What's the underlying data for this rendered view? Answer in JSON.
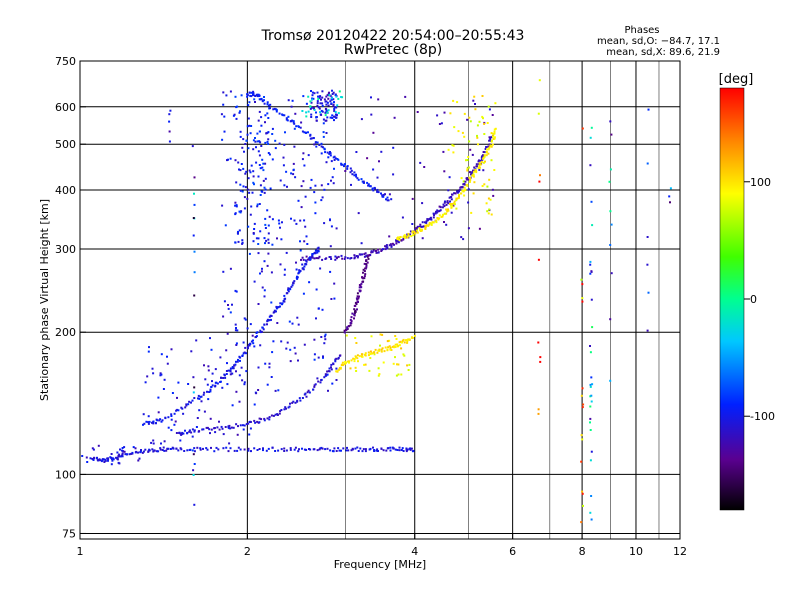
{
  "chart_data": {
    "type": "scatter",
    "title": "Tromsø 20120422 20:54:00–20:55:43",
    "subtitle": "RwPretec (8p)",
    "xlabel": "Frequency [MHz]",
    "ylabel": "Stationary phase Virtual Height [km]",
    "x_scale": "log",
    "y_scale": "log",
    "xlim": [
      1,
      12
    ],
    "ylim": [
      73,
      750
    ],
    "x_ticks": [
      1,
      2,
      4,
      6,
      8,
      10,
      12
    ],
    "y_ticks": [
      75,
      100,
      200,
      300,
      400,
      500,
      600,
      750
    ],
    "x_minor_grid": [
      3,
      5,
      7,
      9,
      11
    ],
    "grid": true,
    "phase_box": {
      "title": "Phases",
      "line1": "mean, sd,O: −84.7, 17.1",
      "line2": "mean, sd,X:  89.6, 21.9"
    },
    "colorbar": {
      "label": "[deg]",
      "range": [
        -180,
        180
      ],
      "ticks": [
        100,
        0,
        -100
      ],
      "palette": "rainbow (black-purple-blue-cyan-green-yellow-red)"
    },
    "traces": [
      {
        "name": "",
        "color_deg": -105,
        "points": [
          [
            1.05,
            108
          ],
          [
            1.1,
            107
          ],
          [
            1.15,
            108
          ],
          [
            1.2,
            110
          ],
          [
            1.3,
            112
          ],
          [
            1.4,
            113
          ],
          [
            1.5,
            113
          ],
          [
            1.7,
            113
          ],
          [
            2.0,
            113
          ],
          [
            2.3,
            113
          ],
          [
            2.6,
            113
          ],
          [
            2.9,
            113
          ],
          [
            3.2,
            113
          ],
          [
            3.5,
            113
          ],
          [
            3.8,
            113
          ],
          [
            4.0,
            113
          ]
        ]
      },
      {
        "name": "",
        "color_deg": -100,
        "points": [
          [
            1.3,
            128
          ],
          [
            1.4,
            130
          ],
          [
            1.55,
            140
          ],
          [
            1.7,
            150
          ],
          [
            1.8,
            160
          ],
          [
            1.9,
            170
          ],
          [
            2.0,
            185
          ],
          [
            2.1,
            200
          ],
          [
            2.2,
            215
          ],
          [
            2.3,
            230
          ],
          [
            2.4,
            250
          ],
          [
            2.5,
            270
          ],
          [
            2.6,
            290
          ],
          [
            2.7,
            300
          ]
        ]
      },
      {
        "name": "",
        "color_deg": -110,
        "points": [
          [
            1.5,
            122
          ],
          [
            1.6,
            124
          ],
          [
            1.8,
            125
          ],
          [
            2.0,
            128
          ],
          [
            2.2,
            132
          ],
          [
            2.4,
            140
          ],
          [
            2.6,
            150
          ],
          [
            2.8,
            165
          ],
          [
            2.95,
            180
          ]
        ]
      },
      {
        "name": "",
        "color_deg": -120,
        "points": [
          [
            2.5,
            287
          ],
          [
            2.8,
            287
          ],
          [
            3.1,
            288
          ],
          [
            3.3,
            292
          ],
          [
            3.5,
            300
          ],
          [
            3.7,
            310
          ],
          [
            3.9,
            320
          ],
          [
            4.1,
            335
          ],
          [
            4.3,
            350
          ],
          [
            4.5,
            370
          ],
          [
            4.7,
            390
          ],
          [
            4.9,
            410
          ],
          [
            5.1,
            440
          ],
          [
            5.3,
            470
          ],
          [
            5.5,
            520
          ]
        ]
      },
      {
        "name": "",
        "color_deg": 95,
        "points": [
          [
            3.7,
            315
          ],
          [
            3.9,
            320
          ],
          [
            4.1,
            330
          ],
          [
            4.3,
            340
          ],
          [
            4.5,
            355
          ],
          [
            4.7,
            375
          ],
          [
            4.9,
            400
          ],
          [
            5.1,
            430
          ],
          [
            5.3,
            460
          ],
          [
            5.5,
            500
          ],
          [
            5.6,
            540
          ]
        ]
      },
      {
        "name": "",
        "color_deg": 100,
        "points": [
          [
            2.9,
            165
          ],
          [
            3.0,
            172
          ],
          [
            3.2,
            178
          ],
          [
            3.4,
            182
          ],
          [
            3.6,
            185
          ],
          [
            3.8,
            190
          ],
          [
            4.0,
            196
          ]
        ]
      },
      {
        "name": "",
        "color_deg": -140,
        "points": [
          [
            3.0,
            200
          ],
          [
            3.1,
            215
          ],
          [
            3.15,
            230
          ],
          [
            3.2,
            250
          ],
          [
            3.25,
            270
          ],
          [
            3.3,
            290
          ]
        ]
      },
      {
        "name": "",
        "color_deg": -95,
        "points": [
          [
            2.0,
            640
          ],
          [
            2.1,
            630
          ],
          [
            2.2,
            600
          ],
          [
            2.4,
            560
          ],
          [
            2.6,
            520
          ],
          [
            2.8,
            480
          ],
          [
            3.0,
            450
          ],
          [
            3.2,
            420
          ],
          [
            3.4,
            400
          ],
          [
            3.6,
            380
          ]
        ]
      }
    ],
    "clouds": [
      {
        "name": "",
        "color_deg": -100,
        "density": 260,
        "x_range": [
          1.8,
          2.9
        ],
        "y_range": [
          150,
          650
        ]
      },
      {
        "name": "",
        "color_deg": -95,
        "density": 120,
        "x_range": [
          1.9,
          2.2
        ],
        "y_range": [
          300,
          650
        ]
      },
      {
        "name": "",
        "color_deg": -105,
        "density": 90,
        "x_range": [
          2.6,
          2.9
        ],
        "y_range": [
          560,
          650
        ]
      },
      {
        "name": "",
        "color_deg": -15,
        "density": 25,
        "x_range": [
          2.5,
          3.0
        ],
        "y_range": [
          570,
          650
        ]
      },
      {
        "name": "",
        "color_deg": -120,
        "density": 70,
        "x_range": [
          3.0,
          5.6
        ],
        "y_range": [
          300,
          650
        ]
      },
      {
        "name": "",
        "color_deg": 90,
        "density": 60,
        "x_range": [
          4.6,
          5.6
        ],
        "y_range": [
          350,
          640
        ]
      },
      {
        "name": "",
        "color_deg": 95,
        "density": 40,
        "x_range": [
          3.0,
          4.0
        ],
        "y_range": [
          160,
          200
        ]
      },
      {
        "name": "",
        "color_deg": -105,
        "density": 90,
        "x_range": [
          1.3,
          2.1
        ],
        "y_range": [
          115,
          200
        ]
      },
      {
        "name": "",
        "color_deg": -110,
        "density": 25,
        "x_range": [
          1.0,
          1.3
        ],
        "y_range": [
          105,
          115
        ]
      }
    ],
    "scatter_columns": [
      {
        "name": "",
        "x": 1.6,
        "color_deg": -90,
        "y_range": [
          80,
          650
        ],
        "n": 18
      },
      {
        "name": "",
        "x": 1.45,
        "color_deg": -150,
        "y_range": [
          500,
          640
        ],
        "n": 5
      },
      {
        "name": "",
        "x": 6.7,
        "color_deg": 150,
        "y_range": [
          80,
          700
        ],
        "n": 10
      },
      {
        "name": "",
        "x": 8.0,
        "color_deg": 130,
        "y_range": [
          75,
          540
        ],
        "n": 16
      },
      {
        "name": "",
        "x": 8.3,
        "color_deg": -60,
        "y_range": [
          80,
          620
        ],
        "n": 30
      },
      {
        "name": "",
        "x": 9.0,
        "color_deg": -70,
        "y_range": [
          140,
          600
        ],
        "n": 10
      },
      {
        "name": "",
        "x": 10.5,
        "color_deg": -90,
        "y_range": [
          200,
          640
        ],
        "n": 6
      },
      {
        "name": "",
        "x": 11.5,
        "color_deg": -80,
        "y_range": [
          370,
          420
        ],
        "n": 3
      }
    ]
  }
}
